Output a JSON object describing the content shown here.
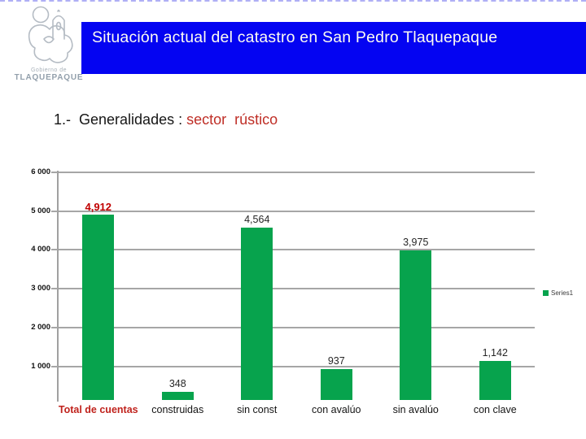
{
  "header": {
    "logo": {
      "caption_top": "Gobierno de",
      "caption_bottom": "TLAQUEPAQUE"
    },
    "banner": {
      "title": "Situación actual del catastro en San Pedro Tlaquepaque",
      "bg_color": "#0404f2",
      "text_color": "#fdfcf2"
    }
  },
  "slide": {
    "heading_black": "1.-  Generalidades : ",
    "heading_red": "sector  rústico",
    "accent_red": "#bf2e26"
  },
  "chart_data": {
    "type": "bar",
    "title": "",
    "xlabel": "",
    "ylabel": "",
    "categories": [
      "Total de cuentas",
      "construidas",
      "sin const",
      "con avalúo",
      "sin avalúo",
      "con clave"
    ],
    "values": [
      4912,
      348,
      4564,
      937,
      3975,
      1142
    ],
    "data_labels": [
      "4,912",
      "348",
      "4,564",
      "937",
      "3,975",
      "1,142"
    ],
    "y_ticks": [
      6000,
      5000,
      4000,
      3000,
      2000,
      1000
    ],
    "y_tick_labels": [
      "6 000",
      "5 000",
      "4 000",
      "3 000",
      "2 000",
      "1 000"
    ],
    "ylim": [
      0,
      6000
    ],
    "grid": true,
    "gridline_color": "#a6a6a6",
    "bar_color": "#07a34d",
    "emphasis": {
      "index": 0,
      "color": "#c00000"
    },
    "legend": {
      "label": "Series1",
      "position": "right"
    }
  }
}
